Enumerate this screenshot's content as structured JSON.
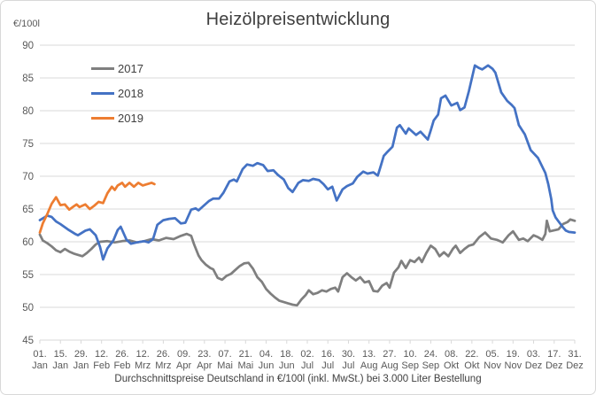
{
  "chart": {
    "title": "Heizölpreisentwicklung",
    "y_axis_unit": "€/100l",
    "footer": "Durchschnittspreise Deutschland in €/100l (inkl. MwSt.) bei 3.000 Liter Bestellung"
  },
  "chart_data": {
    "type": "line",
    "title": "Heizölpreisentwicklung",
    "ylabel": "€/100l",
    "xlabel": "Durchschnittspreise Deutschland in €/100l (inkl. MwSt.) bei 3.000 Liter Bestellung",
    "ylim": [
      45,
      90
    ],
    "y_ticks": [
      45,
      50,
      55,
      60,
      65,
      70,
      75,
      80,
      85,
      90
    ],
    "grid": "horizontal",
    "legend_position": "inside-top-left",
    "colors": {
      "gridline": "#d9d9d9",
      "axis_text": "#595959",
      "title_text": "#3f3f3f",
      "caption_text": "#404040"
    },
    "x_tick_interval_days": 14,
    "x_tick_labels": [
      "01. Jan",
      "15. Jan",
      "29. Jan",
      "12. Feb",
      "26. Feb",
      "12. Mrz",
      "26. Mrz",
      "09. Apr",
      "23. Apr",
      "07. Mai",
      "21. Mai",
      "04. Jun",
      "18. Jun",
      "02. Jul",
      "16. Jul",
      "30. Jul",
      "13. Aug",
      "27. Aug",
      "10. Sep",
      "24. Sep",
      "08. Okt",
      "22. Okt",
      "05. Nov",
      "19. Nov",
      "03. Dez",
      "17. Dez",
      "31. Dez"
    ],
    "series": [
      {
        "name": "2017",
        "color": "#7f7f7f",
        "points": [
          [
            0,
            61.1
          ],
          [
            2,
            60.2
          ],
          [
            5,
            59.8
          ],
          [
            8,
            59.3
          ],
          [
            11,
            58.7
          ],
          [
            14,
            58.4
          ],
          [
            17,
            58.9
          ],
          [
            20,
            58.5
          ],
          [
            23,
            58.2
          ],
          [
            26,
            58.0
          ],
          [
            29,
            57.8
          ],
          [
            32,
            58.3
          ],
          [
            35,
            58.9
          ],
          [
            38,
            59.6
          ],
          [
            41,
            60.0
          ],
          [
            46,
            60.1
          ],
          [
            51,
            59.9
          ],
          [
            56,
            60.1
          ],
          [
            61,
            60.2
          ],
          [
            66,
            59.9
          ],
          [
            71,
            60.1
          ],
          [
            76,
            60.4
          ],
          [
            81,
            60.2
          ],
          [
            86,
            60.6
          ],
          [
            91,
            60.4
          ],
          [
            96,
            60.9
          ],
          [
            100,
            61.2
          ],
          [
            103,
            60.9
          ],
          [
            105,
            59.6
          ],
          [
            108,
            57.9
          ],
          [
            110,
            57.2
          ],
          [
            113,
            56.5
          ],
          [
            116,
            56.0
          ],
          [
            118,
            55.8
          ],
          [
            121,
            54.5
          ],
          [
            124,
            54.2
          ],
          [
            127,
            54.8
          ],
          [
            130,
            55.1
          ],
          [
            133,
            55.7
          ],
          [
            136,
            56.3
          ],
          [
            139,
            56.7
          ],
          [
            142,
            56.8
          ],
          [
            145,
            55.9
          ],
          [
            148,
            54.6
          ],
          [
            151,
            53.9
          ],
          [
            154,
            52.8
          ],
          [
            157,
            52.1
          ],
          [
            160,
            51.5
          ],
          [
            163,
            51.0
          ],
          [
            166,
            50.8
          ],
          [
            169,
            50.6
          ],
          [
            172,
            50.4
          ],
          [
            175,
            50.3
          ],
          [
            178,
            51.2
          ],
          [
            181,
            51.9
          ],
          [
            183,
            52.6
          ],
          [
            186,
            52.0
          ],
          [
            189,
            52.2
          ],
          [
            192,
            52.6
          ],
          [
            195,
            52.4
          ],
          [
            198,
            52.8
          ],
          [
            201,
            53.0
          ],
          [
            203,
            52.4
          ],
          [
            206,
            54.6
          ],
          [
            209,
            55.2
          ],
          [
            212,
            54.6
          ],
          [
            215,
            54.1
          ],
          [
            218,
            54.6
          ],
          [
            221,
            53.8
          ],
          [
            224,
            54.0
          ],
          [
            227,
            52.5
          ],
          [
            230,
            52.4
          ],
          [
            233,
            53.3
          ],
          [
            236,
            53.7
          ],
          [
            238,
            53.0
          ],
          [
            241,
            55.3
          ],
          [
            244,
            56.1
          ],
          [
            246,
            57.1
          ],
          [
            249,
            56.0
          ],
          [
            252,
            57.2
          ],
          [
            255,
            56.9
          ],
          [
            258,
            57.6
          ],
          [
            260,
            56.9
          ],
          [
            263,
            58.3
          ],
          [
            266,
            59.4
          ],
          [
            269,
            58.9
          ],
          [
            272,
            57.8
          ],
          [
            275,
            58.4
          ],
          [
            278,
            57.8
          ],
          [
            281,
            58.9
          ],
          [
            283,
            59.4
          ],
          [
            286,
            58.3
          ],
          [
            289,
            58.9
          ],
          [
            292,
            59.4
          ],
          [
            295,
            59.6
          ],
          [
            299,
            60.7
          ],
          [
            303,
            61.4
          ],
          [
            307,
            60.5
          ],
          [
            311,
            60.3
          ],
          [
            315,
            59.9
          ],
          [
            319,
            61.0
          ],
          [
            322,
            61.6
          ],
          [
            326,
            60.3
          ],
          [
            329,
            60.5
          ],
          [
            332,
            60.1
          ],
          [
            336,
            61.0
          ],
          [
            339,
            60.7
          ],
          [
            342,
            60.3
          ],
          [
            344,
            61.2
          ],
          [
            345,
            63.2
          ],
          [
            347,
            61.6
          ],
          [
            351,
            61.8
          ],
          [
            353,
            61.9
          ],
          [
            356,
            62.7
          ],
          [
            359,
            63.0
          ],
          [
            361,
            63.4
          ],
          [
            364,
            63.2
          ]
        ]
      },
      {
        "name": "2018",
        "color": "#4472c4",
        "points": [
          [
            0,
            63.3
          ],
          [
            3,
            63.7
          ],
          [
            5,
            64.0
          ],
          [
            8,
            63.8
          ],
          [
            11,
            63.1
          ],
          [
            14,
            62.7
          ],
          [
            19,
            61.9
          ],
          [
            24,
            61.2
          ],
          [
            26,
            61.0
          ],
          [
            31,
            61.7
          ],
          [
            34,
            61.9
          ],
          [
            38,
            61.0
          ],
          [
            41,
            59.2
          ],
          [
            43,
            57.3
          ],
          [
            46,
            59.0
          ],
          [
            50,
            60.2
          ],
          [
            53,
            61.8
          ],
          [
            55,
            62.3
          ],
          [
            59,
            60.3
          ],
          [
            62,
            59.7
          ],
          [
            66,
            59.9
          ],
          [
            71,
            60.1
          ],
          [
            74,
            59.9
          ],
          [
            77,
            60.4
          ],
          [
            80,
            62.6
          ],
          [
            84,
            63.3
          ],
          [
            88,
            63.5
          ],
          [
            92,
            63.6
          ],
          [
            96,
            62.8
          ],
          [
            99,
            62.9
          ],
          [
            103,
            64.9
          ],
          [
            106,
            65.1
          ],
          [
            108,
            64.8
          ],
          [
            111,
            65.4
          ],
          [
            115,
            66.2
          ],
          [
            118,
            66.6
          ],
          [
            122,
            66.6
          ],
          [
            125,
            67.5
          ],
          [
            129,
            69.2
          ],
          [
            132,
            69.5
          ],
          [
            134,
            69.2
          ],
          [
            138,
            71.1
          ],
          [
            141,
            71.8
          ],
          [
            145,
            71.6
          ],
          [
            148,
            72.0
          ],
          [
            152,
            71.7
          ],
          [
            155,
            70.8
          ],
          [
            159,
            70.9
          ],
          [
            162,
            70.2
          ],
          [
            166,
            69.5
          ],
          [
            169,
            68.2
          ],
          [
            172,
            67.6
          ],
          [
            176,
            69.0
          ],
          [
            179,
            69.4
          ],
          [
            183,
            69.3
          ],
          [
            186,
            69.6
          ],
          [
            190,
            69.4
          ],
          [
            193,
            68.8
          ],
          [
            196,
            68.0
          ],
          [
            199,
            68.4
          ],
          [
            202,
            66.3
          ],
          [
            206,
            68.0
          ],
          [
            209,
            68.5
          ],
          [
            213,
            68.9
          ],
          [
            216,
            69.9
          ],
          [
            220,
            70.7
          ],
          [
            223,
            70.4
          ],
          [
            227,
            70.6
          ],
          [
            230,
            70.1
          ],
          [
            232,
            71.6
          ],
          [
            234,
            73.1
          ],
          [
            236,
            73.6
          ],
          [
            240,
            74.5
          ],
          [
            243,
            77.4
          ],
          [
            245,
            77.8
          ],
          [
            249,
            76.5
          ],
          [
            251,
            77.3
          ],
          [
            256,
            76.3
          ],
          [
            259,
            76.8
          ],
          [
            264,
            75.6
          ],
          [
            266,
            77.0
          ],
          [
            268,
            78.5
          ],
          [
            271,
            79.4
          ],
          [
            273,
            81.9
          ],
          [
            276,
            82.3
          ],
          [
            280,
            80.8
          ],
          [
            284,
            81.2
          ],
          [
            286,
            80.1
          ],
          [
            289,
            80.5
          ],
          [
            292,
            83.0
          ],
          [
            296,
            86.9
          ],
          [
            299,
            86.5
          ],
          [
            301,
            86.3
          ],
          [
            305,
            86.9
          ],
          [
            308,
            86.4
          ],
          [
            310,
            85.8
          ],
          [
            314,
            82.8
          ],
          [
            318,
            81.5
          ],
          [
            321,
            80.9
          ],
          [
            323,
            80.4
          ],
          [
            326,
            77.8
          ],
          [
            330,
            76.4
          ],
          [
            334,
            74.0
          ],
          [
            339,
            72.8
          ],
          [
            344,
            70.5
          ],
          [
            346,
            68.8
          ],
          [
            348,
            66.5
          ],
          [
            349,
            64.8
          ],
          [
            351,
            63.7
          ],
          [
            354,
            62.8
          ],
          [
            356,
            62.2
          ],
          [
            358,
            61.7
          ],
          [
            360,
            61.5
          ],
          [
            364,
            61.4
          ]
        ]
      },
      {
        "name": "2019",
        "color": "#ed7d31",
        "points": [
          [
            0,
            61.4
          ],
          [
            2,
            62.8
          ],
          [
            5,
            64.2
          ],
          [
            8,
            65.8
          ],
          [
            11,
            66.8
          ],
          [
            14,
            65.6
          ],
          [
            17,
            65.7
          ],
          [
            20,
            64.9
          ],
          [
            23,
            65.4
          ],
          [
            25,
            65.7
          ],
          [
            27,
            65.3
          ],
          [
            31,
            65.7
          ],
          [
            34,
            65.0
          ],
          [
            37,
            65.5
          ],
          [
            40,
            66.1
          ],
          [
            43,
            65.9
          ],
          [
            46,
            67.4
          ],
          [
            49,
            68.4
          ],
          [
            51,
            67.9
          ],
          [
            53,
            68.6
          ],
          [
            56,
            69.0
          ],
          [
            58,
            68.4
          ],
          [
            61,
            69.0
          ],
          [
            64,
            68.4
          ],
          [
            67,
            69.0
          ],
          [
            70,
            68.6
          ],
          [
            73,
            68.8
          ],
          [
            76,
            69.0
          ],
          [
            78,
            68.8
          ]
        ]
      }
    ]
  }
}
